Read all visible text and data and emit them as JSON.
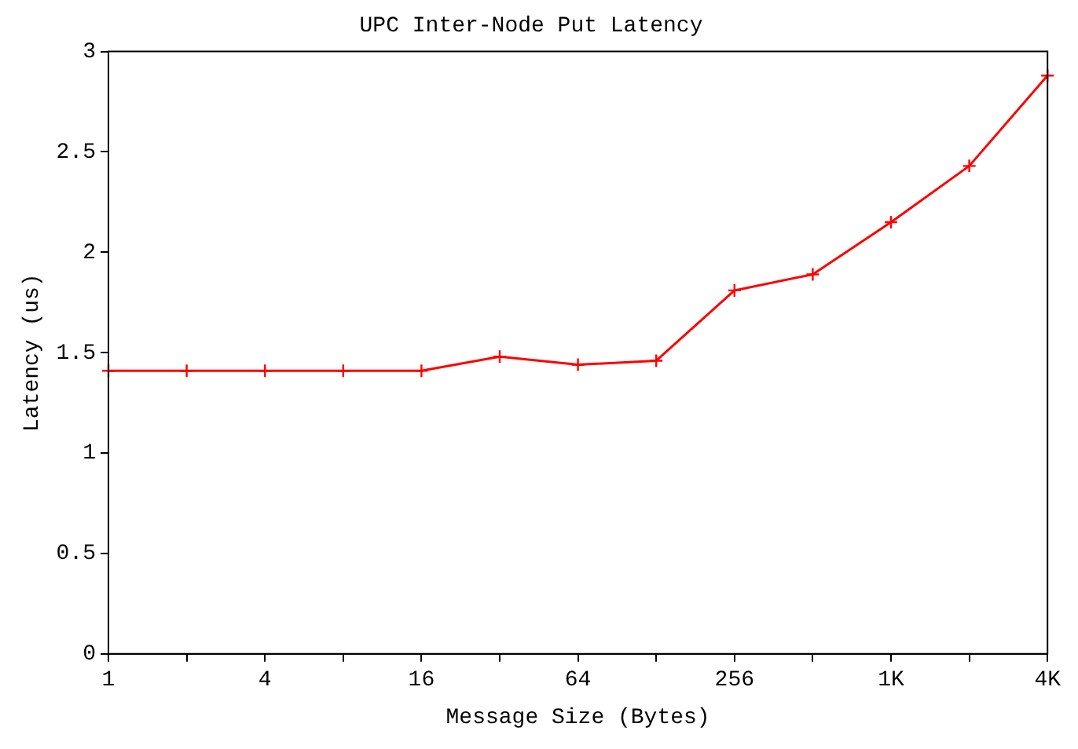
{
  "chart_data": {
    "type": "line",
    "title": "UPC Inter-Node Put Latency",
    "xlabel": "Message Size (Bytes)",
    "ylabel": "Latency (us)",
    "categories": [
      "1",
      null,
      "4",
      null,
      "16",
      null,
      "64",
      null,
      "256",
      null,
      "1K",
      null,
      "4K"
    ],
    "series": [
      {
        "color": "#ff0000",
        "values": [
          1.41,
          1.41,
          1.41,
          1.41,
          1.41,
          1.48,
          1.44,
          1.46,
          1.81,
          1.89,
          2.15,
          2.43,
          2.88
        ]
      }
    ],
    "ylim": [
      0,
      3
    ],
    "yticks": [
      0,
      0.5,
      1,
      1.5,
      2,
      2.5,
      3
    ],
    "grid": false,
    "legend": false,
    "marker": "cross",
    "line_style": "solid"
  }
}
